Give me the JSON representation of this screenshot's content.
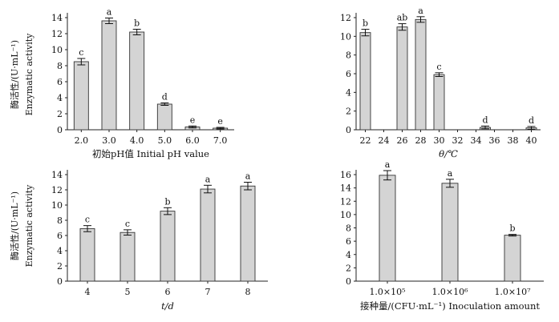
{
  "chart_data": [
    {
      "id": "a",
      "type": "bar",
      "categories": [
        "2.0",
        "3.0",
        "4.0",
        "5.0",
        "6.0",
        "7.0"
      ],
      "values": [
        8.5,
        13.6,
        12.2,
        3.2,
        0.35,
        0.2
      ],
      "errors": [
        0.4,
        0.35,
        0.35,
        0.15,
        0.12,
        0.1
      ],
      "letters": [
        "c",
        "a",
        "b",
        "d",
        "e",
        "e"
      ],
      "ylim": [
        0,
        14
      ],
      "yticks": [
        0,
        2,
        4,
        6,
        8,
        10,
        12,
        14
      ],
      "xlabel": "初始pH值  Initial pH value",
      "ylabel": [
        "酶活性/(U·mL⁻¹)",
        "Enzymatic activity"
      ]
    },
    {
      "id": "b",
      "type": "bar",
      "x": [
        22,
        26,
        28,
        30,
        35,
        40
      ],
      "values": [
        10.4,
        11.0,
        11.8,
        5.9,
        0.25,
        0.2
      ],
      "errors": [
        0.35,
        0.35,
        0.3,
        0.2,
        0.15,
        0.15
      ],
      "letters": [
        "b",
        "ab",
        "a",
        "c",
        "d",
        "d"
      ],
      "xticks": [
        "22",
        "24",
        "26",
        "28",
        "30",
        "32",
        "34",
        "36",
        "38",
        "40"
      ],
      "xlim": [
        21,
        41
      ],
      "ylim": [
        0,
        12
      ],
      "yticks": [
        0,
        2,
        4,
        6,
        8,
        10,
        12
      ],
      "xlabel": "θ/℃"
    },
    {
      "id": "c",
      "type": "bar",
      "categories": [
        "4",
        "5",
        "6",
        "7",
        "8"
      ],
      "values": [
        6.9,
        6.4,
        9.2,
        12.1,
        12.5
      ],
      "errors": [
        0.4,
        0.35,
        0.45,
        0.5,
        0.5
      ],
      "letters": [
        "c",
        "c",
        "b",
        "a",
        "a"
      ],
      "ylim": [
        0,
        14
      ],
      "yticks": [
        0,
        2,
        4,
        6,
        8,
        10,
        12,
        14
      ],
      "xlabel": "t/d",
      "ylabel": [
        "酶活性/(U·mL⁻¹)",
        "Enzymatic activity"
      ]
    },
    {
      "id": "d",
      "type": "bar",
      "categories": [
        "1.0×10⁵",
        "1.0×10⁶",
        "1.0×10⁷"
      ],
      "values": [
        15.9,
        14.7,
        6.9
      ],
      "errors": [
        0.7,
        0.6,
        0.12
      ],
      "letters": [
        "a",
        "a",
        "b"
      ],
      "ylim": [
        0,
        16
      ],
      "yticks": [
        0,
        2,
        4,
        6,
        8,
        10,
        12,
        14,
        16
      ],
      "xlabel": "接种量/(CFU·mL⁻¹)    Inoculation amount"
    }
  ]
}
